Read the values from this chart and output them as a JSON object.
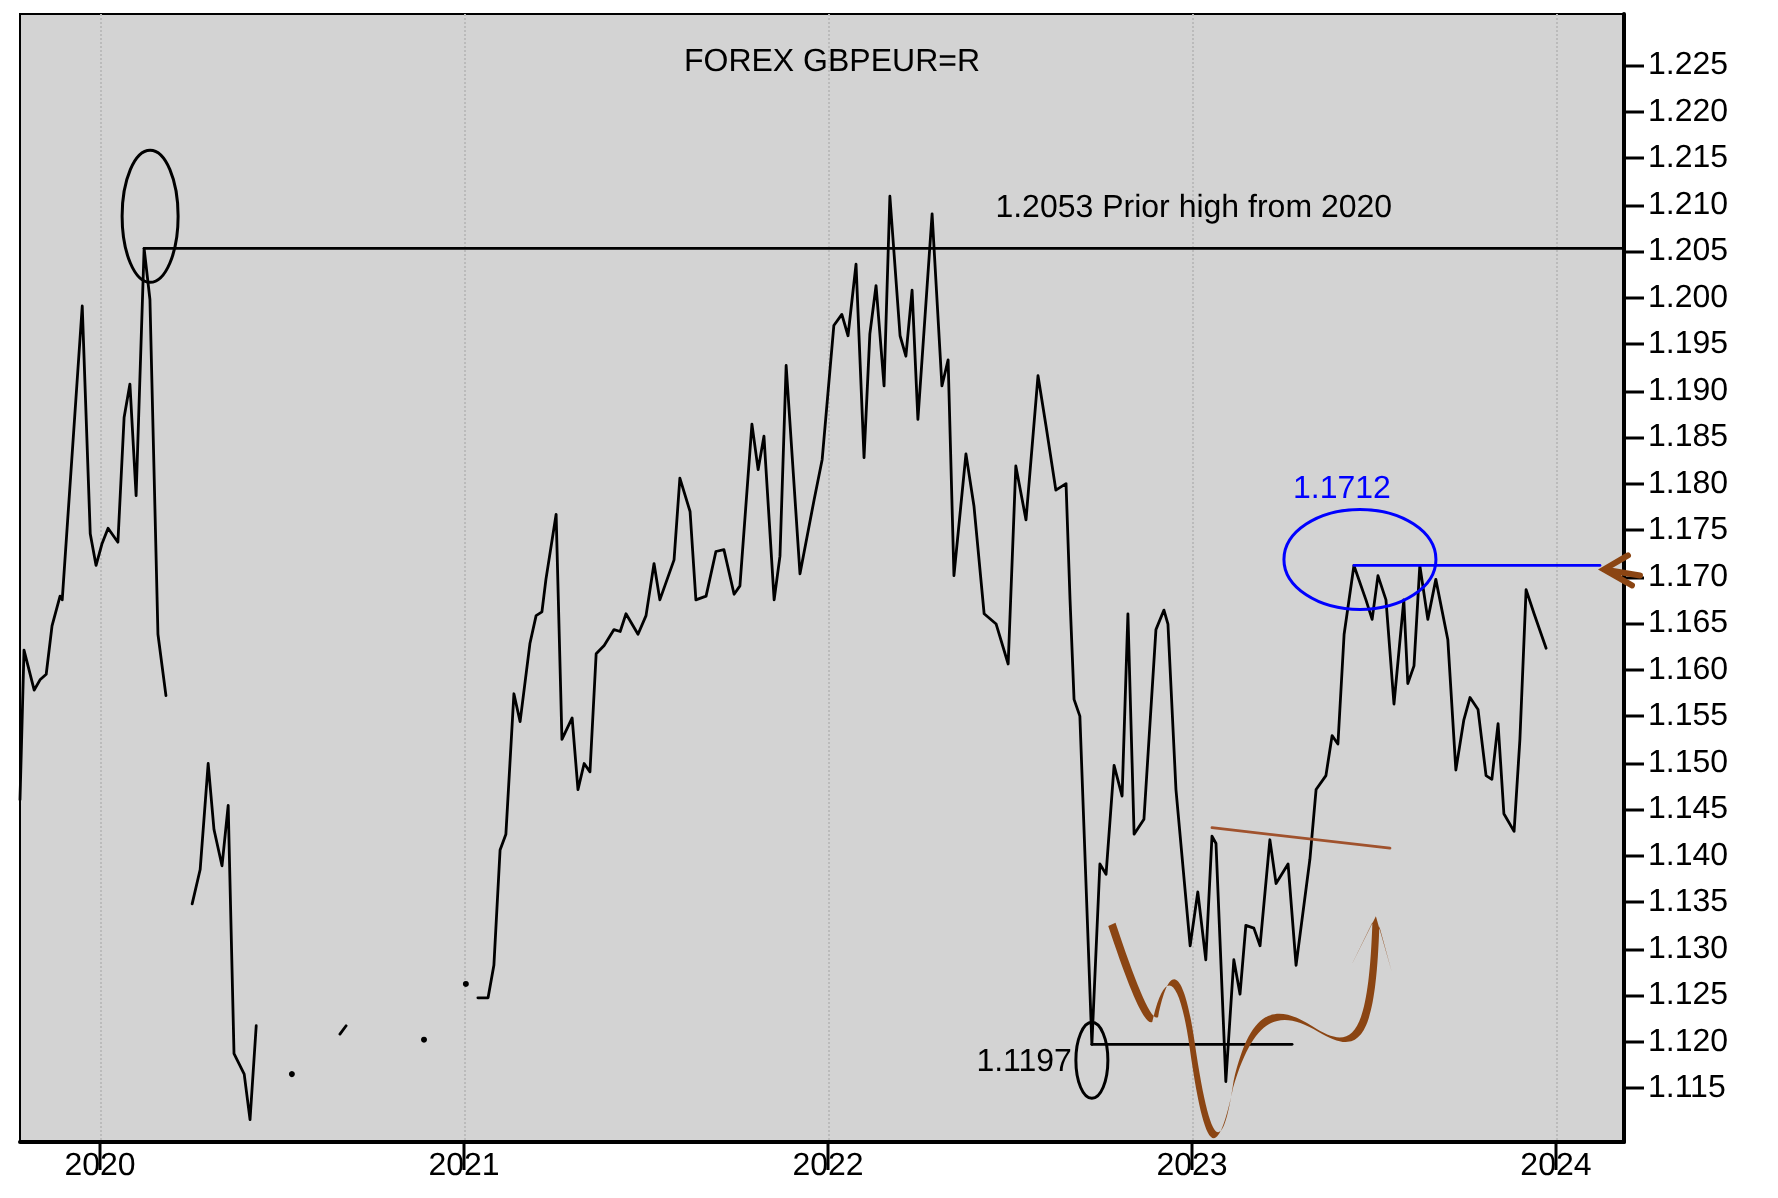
{
  "chart_data": {
    "type": "line",
    "title": "FOREX GBPEUR=R",
    "xlim": [
      2019.78,
      2024.187
    ],
    "xticks": [
      2020,
      2021,
      2022,
      2023,
      2024
    ],
    "ylim": [
      1.1092,
      1.2305
    ],
    "yticks": [
      1.115,
      {
        "value": 1.12,
        "label": "1.120"
      },
      1.125,
      {
        "value": 1.13,
        "label": "1.130"
      },
      1.135,
      {
        "value": 1.14,
        "label": "1.140"
      },
      1.145,
      {
        "value": 1.15,
        "label": "1.150"
      },
      1.155,
      {
        "value": 1.16,
        "label": "1.160"
      },
      1.165,
      {
        "value": 1.17,
        "label": "1.170"
      },
      1.175,
      {
        "value": 1.18,
        "label": "1.180"
      },
      1.185,
      {
        "value": 1.19,
        "label": "1.190"
      },
      1.195,
      {
        "value": 1.2,
        "label": "1.200"
      },
      1.205,
      {
        "value": 1.21,
        "label": "1.210"
      },
      1.215,
      {
        "value": 1.22,
        "label": "1.220"
      },
      1.225
    ],
    "grid": "x",
    "marker": "none",
    "line_style": "solid",
    "series": [
      {
        "color": "#000000",
        "x": [
          2019.78,
          2019.791,
          2019.819,
          2019.835,
          2019.852,
          2019.868,
          2019.89,
          2019.896,
          2019.951,
          2019.973,
          2019.989,
          2020.005,
          2020.022,
          2020.049,
          2020.066,
          2020.082,
          2020.099,
          2020.121,
          2020.137,
          2020.159,
          2020.181,
          2020.198,
          2020.231,
          2020.253,
          2020.275,
          2020.297,
          2020.313,
          2020.335,
          2020.352,
          2020.368,
          2020.396,
          2020.412,
          2020.429,
          2020.456,
          2020.527,
          2020.549,
          2020.659,
          2020.676,
          2020.698,
          2020.89,
          2020.912,
          2020.983,
          2021.005,
          2021.022,
          2021.038,
          2021.066,
          2021.082,
          2021.099,
          2021.115,
          2021.137,
          2021.154,
          2021.181,
          2021.198,
          2021.214,
          2021.225,
          2021.253,
          2021.269,
          2021.297,
          2021.313,
          2021.33,
          2021.346,
          2021.363,
          2021.385,
          2021.412,
          2021.429,
          2021.445,
          2021.478,
          2021.5,
          2021.522,
          2021.538,
          2021.577,
          2021.593,
          2021.621,
          2021.637,
          2021.665,
          2021.692,
          2021.714,
          2021.742,
          2021.758,
          2021.791,
          2021.808,
          2021.824,
          2021.852,
          2021.868,
          2021.885,
          2021.923,
          2021.962,
          2021.984,
          2022.016,
          2022.038,
          2022.055,
          2022.077,
          2022.099,
          2022.115,
          2022.132,
          2022.154,
          2022.17,
          2022.198,
          2022.214,
          2022.231,
          2022.247,
          2022.286,
          2022.313,
          2022.33,
          2022.346,
          2022.379,
          2022.401,
          2022.429,
          2022.462,
          2022.495,
          2022.516,
          2022.544,
          2022.577,
          2022.599,
          2022.626,
          2022.654,
          2022.665,
          2022.676,
          2022.692,
          2022.725,
          2022.747,
          2022.764,
          2022.786,
          2022.808,
          2022.824,
          2022.841,
          2022.868,
          2022.901,
          2022.923,
          2022.934,
          2022.956,
          2022.995,
          2023.016,
          2023.038,
          2023.055,
          2023.066,
          2023.093,
          2023.115,
          2023.132,
          2023.148,
          2023.17,
          2023.187,
          2023.214,
          2023.231,
          2023.264,
          2023.286,
          2023.324,
          2023.341,
          2023.368,
          2023.385,
          2023.401,
          2023.418,
          2023.445,
          2023.478,
          2023.495,
          2023.511,
          2023.533,
          2023.555,
          2023.582,
          2023.593,
          2023.61,
          2023.626,
          2023.648,
          2023.67,
          2023.703,
          2023.725,
          2023.747,
          2023.764,
          2023.786,
          2023.808,
          2023.824,
          2023.841,
          2023.857,
          2023.885,
          2023.901,
          2023.918,
          2023.94,
          2023.973
        ],
        "values": [
          1.146,
          1.1621,
          1.1578,
          1.1589,
          1.1595,
          1.1647,
          1.1679,
          1.1675,
          1.1991,
          1.1746,
          1.1712,
          1.1735,
          1.1752,
          1.1737,
          1.1871,
          1.1907,
          1.1787,
          1.2053,
          1.1998,
          1.1638,
          1.1572,
          null,
          null,
          1.1348,
          1.1385,
          1.1499,
          1.1428,
          1.1389,
          1.1454,
          1.1187,
          1.1165,
          1.1116,
          1.1217,
          null,
          1.1165,
          null,
          1.1208,
          1.1217,
          null,
          1.1202,
          null,
          null,
          1.1262,
          null,
          1.1247,
          1.1247,
          1.1282,
          1.1406,
          1.1423,
          1.1574,
          1.1544,
          1.1628,
          1.1658,
          1.1662,
          1.1697,
          1.1767,
          1.1525,
          1.1548,
          1.1471,
          1.1499,
          1.149,
          1.1617,
          1.1626,
          1.1643,
          1.1641,
          1.166,
          1.1638,
          1.1658,
          1.1714,
          1.1675,
          1.1718,
          1.1806,
          1.177,
          1.1675,
          1.1679,
          1.1727,
          1.1729,
          1.1681,
          1.169,
          1.1864,
          1.1815,
          1.1851,
          1.1675,
          1.1722,
          1.1927,
          1.1703,
          1.1783,
          1.1826,
          1.197,
          1.1982,
          1.1959,
          1.2036,
          1.1828,
          1.1961,
          1.2013,
          1.1905,
          1.2109,
          1.1959,
          1.1937,
          1.2008,
          1.1869,
          1.209,
          1.1905,
          1.1933,
          1.1701,
          1.1832,
          1.1776,
          1.166,
          1.1649,
          1.1606,
          1.1819,
          1.1761,
          1.1916,
          1.1862,
          1.1793,
          1.18,
          1.1675,
          1.1568,
          1.155,
          1.1197,
          1.1391,
          1.138,
          1.1497,
          1.1464,
          1.166,
          1.1423,
          1.1439,
          1.1643,
          1.1664,
          1.1649,
          1.1471,
          1.1303,
          1.1361,
          1.1288,
          1.1421,
          1.1413,
          1.1157,
          1.1288,
          1.1251,
          1.1325,
          1.1322,
          1.1303,
          1.1417,
          1.137,
          1.1391,
          1.1282,
          1.1396,
          1.1471,
          1.1486,
          1.1529,
          1.152,
          1.1638,
          1.1712,
          1.1675,
          1.1654,
          1.1701,
          1.1675,
          1.1563,
          1.1675,
          1.1585,
          1.1604,
          1.1712,
          1.1654,
          1.1697,
          1.1632,
          1.1492,
          1.1546,
          1.157,
          1.1557,
          1.1486,
          1.1482,
          1.1542,
          1.1445,
          1.1426,
          1.1525,
          1.1686,
          1.166,
          1.1623
        ]
      },
      {
        "color": "#000000",
        "x": [
          2020.121,
          2024.187
        ],
        "values": [
          1.2053,
          1.2053
        ]
      },
      {
        "color": "#0000ff",
        "x": [
          2023.445,
          2024.121
        ],
        "values": [
          1.1712,
          1.1712
        ]
      },
      {
        "color": "#000000",
        "x": [
          2022.725,
          2023.275
        ],
        "values": [
          1.1197,
          1.1197
        ]
      },
      {
        "color": "#a0522d",
        "x": [
          2023.055,
          2023.544
        ],
        "values": [
          1.143,
          1.1408
        ]
      }
    ],
    "annotations": [
      {
        "text": "1.2053 Prior high from 2020",
        "x": 2022.46,
        "y": 1.2053
      },
      {
        "text": "1.1712",
        "x": 2023.445,
        "y": 1.1712
      },
      {
        "text": "1.1197",
        "x": 2022.725,
        "y": 1.1197
      }
    ]
  }
}
